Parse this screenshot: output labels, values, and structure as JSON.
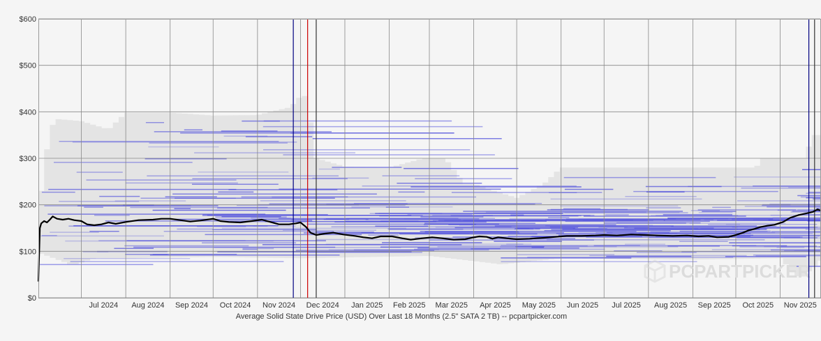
{
  "chart_data": {
    "type": "line",
    "title": "",
    "xlabel": "Average Solid State Drive Price (USD) Over Last 18 Months (2.5\" SATA 2 TB) -- pcpartpicker.com",
    "ylabel": "",
    "ylim": [
      0,
      600
    ],
    "y_ticks": [
      "$0",
      "$100",
      "$200",
      "$300",
      "$400",
      "$500",
      "$600"
    ],
    "y_tick_values": [
      0,
      100,
      200,
      300,
      400,
      500,
      600
    ],
    "x_range": [
      "2024-06-01",
      "2025-11-29"
    ],
    "x_ticks": [
      {
        "label": "Jul 2024",
        "date": "2024-07-01"
      },
      {
        "label": "Aug 2024",
        "date": "2024-08-01"
      },
      {
        "label": "Sep 2024",
        "date": "2024-09-01"
      },
      {
        "label": "Oct 2024",
        "date": "2024-10-01"
      },
      {
        "label": "Nov 2024",
        "date": "2024-11-01"
      },
      {
        "label": "Dec 2024",
        "date": "2024-12-01"
      },
      {
        "label": "Jan 2025",
        "date": "2025-01-01"
      },
      {
        "label": "Feb 2025",
        "date": "2025-02-01"
      },
      {
        "label": "Mar 2025",
        "date": "2025-03-01"
      },
      {
        "label": "Apr 2025",
        "date": "2025-04-01"
      },
      {
        "label": "May 2025",
        "date": "2025-05-01"
      },
      {
        "label": "Jun 2025",
        "date": "2025-06-01"
      },
      {
        "label": "Jul 2025",
        "date": "2025-07-01"
      },
      {
        "label": "Aug 2025",
        "date": "2025-08-01"
      },
      {
        "label": "Sep 2025",
        "date": "2025-09-01"
      },
      {
        "label": "Oct 2025",
        "date": "2025-10-01"
      },
      {
        "label": "Nov 2025",
        "date": "2025-11-01"
      }
    ],
    "grid": true,
    "markers": [
      {
        "date": "2024-11-26",
        "color": "#000080"
      },
      {
        "date": "2024-12-06",
        "color": "#cc0000"
      },
      {
        "date": "2024-12-12",
        "color": "#333333"
      },
      {
        "date": "2025-11-21",
        "color": "#000080"
      },
      {
        "date": "2025-11-25",
        "color": "#333333"
      }
    ],
    "series": [
      {
        "color": "#000000",
        "points": [
          [
            "2024-06-01",
            35
          ],
          [
            "2024-06-02",
            150
          ],
          [
            "2024-06-03",
            160
          ],
          [
            "2024-06-05",
            165
          ],
          [
            "2024-06-07",
            162
          ],
          [
            "2024-06-09",
            168
          ],
          [
            "2024-06-11",
            175
          ],
          [
            "2024-06-14",
            170
          ],
          [
            "2024-06-18",
            168
          ],
          [
            "2024-06-22",
            170
          ],
          [
            "2024-06-26",
            167
          ],
          [
            "2024-07-01",
            165
          ],
          [
            "2024-07-05",
            158
          ],
          [
            "2024-07-10",
            156
          ],
          [
            "2024-07-15",
            158
          ],
          [
            "2024-07-20",
            162
          ],
          [
            "2024-07-25",
            159
          ],
          [
            "2024-08-01",
            163
          ],
          [
            "2024-08-10",
            167
          ],
          [
            "2024-08-20",
            168
          ],
          [
            "2024-08-26",
            170
          ],
          [
            "2024-09-01",
            170
          ],
          [
            "2024-09-08",
            167
          ],
          [
            "2024-09-15",
            164
          ],
          [
            "2024-09-22",
            166
          ],
          [
            "2024-10-01",
            170
          ],
          [
            "2024-10-06",
            165
          ],
          [
            "2024-10-12",
            163
          ],
          [
            "2024-10-20",
            162
          ],
          [
            "2024-10-28",
            165
          ],
          [
            "2024-11-04",
            168
          ],
          [
            "2024-11-10",
            163
          ],
          [
            "2024-11-16",
            158
          ],
          [
            "2024-11-23",
            158
          ],
          [
            "2024-11-28",
            160
          ],
          [
            "2024-12-01",
            162
          ],
          [
            "2024-12-05",
            152
          ],
          [
            "2024-12-08",
            140
          ],
          [
            "2024-12-12",
            135
          ],
          [
            "2024-12-18",
            138
          ],
          [
            "2024-12-24",
            140
          ],
          [
            "2024-12-31",
            136
          ],
          [
            "2025-01-08",
            133
          ],
          [
            "2025-01-14",
            130
          ],
          [
            "2025-01-20",
            128
          ],
          [
            "2025-01-26",
            132
          ],
          [
            "2025-02-03",
            132
          ],
          [
            "2025-02-10",
            128
          ],
          [
            "2025-02-16",
            125
          ],
          [
            "2025-02-24",
            128
          ],
          [
            "2025-03-03",
            130
          ],
          [
            "2025-03-10",
            128
          ],
          [
            "2025-03-18",
            125
          ],
          [
            "2025-03-26",
            126
          ],
          [
            "2025-04-01",
            130
          ],
          [
            "2025-04-05",
            132
          ],
          [
            "2025-04-10",
            131
          ],
          [
            "2025-04-14",
            127
          ],
          [
            "2025-04-18",
            130
          ],
          [
            "2025-04-24",
            128
          ],
          [
            "2025-05-01",
            126
          ],
          [
            "2025-05-10",
            127
          ],
          [
            "2025-05-20",
            129
          ],
          [
            "2025-05-28",
            131
          ],
          [
            "2025-06-05",
            133
          ],
          [
            "2025-06-15",
            133
          ],
          [
            "2025-06-25",
            134
          ],
          [
            "2025-07-01",
            135
          ],
          [
            "2025-07-10",
            134
          ],
          [
            "2025-07-20",
            136
          ],
          [
            "2025-07-30",
            135
          ],
          [
            "2025-08-08",
            134
          ],
          [
            "2025-08-18",
            133
          ],
          [
            "2025-08-28",
            134
          ],
          [
            "2025-09-05",
            132
          ],
          [
            "2025-09-12",
            133
          ],
          [
            "2025-09-18",
            130
          ],
          [
            "2025-09-26",
            131
          ],
          [
            "2025-10-01",
            135
          ],
          [
            "2025-10-06",
            140
          ],
          [
            "2025-10-10",
            145
          ],
          [
            "2025-10-14",
            148
          ],
          [
            "2025-10-18",
            152
          ],
          [
            "2025-10-23",
            155
          ],
          [
            "2025-10-28",
            157
          ],
          [
            "2025-11-03",
            163
          ],
          [
            "2025-11-08",
            172
          ],
          [
            "2025-11-14",
            178
          ],
          [
            "2025-11-20",
            182
          ],
          [
            "2025-11-24",
            185
          ],
          [
            "2025-11-27",
            190
          ],
          [
            "2025-11-29",
            188
          ]
        ]
      }
    ]
  },
  "watermark": {
    "text": "PCPARTPICKER",
    "icon": "box-icon"
  },
  "colors": {
    "background": "#f5f5f5",
    "plot_background": "#f5f5f5",
    "range_fill": "#e4e4e4",
    "gridline": "#888888",
    "listing_lines": "#5555dd",
    "average_line": "#000000"
  }
}
